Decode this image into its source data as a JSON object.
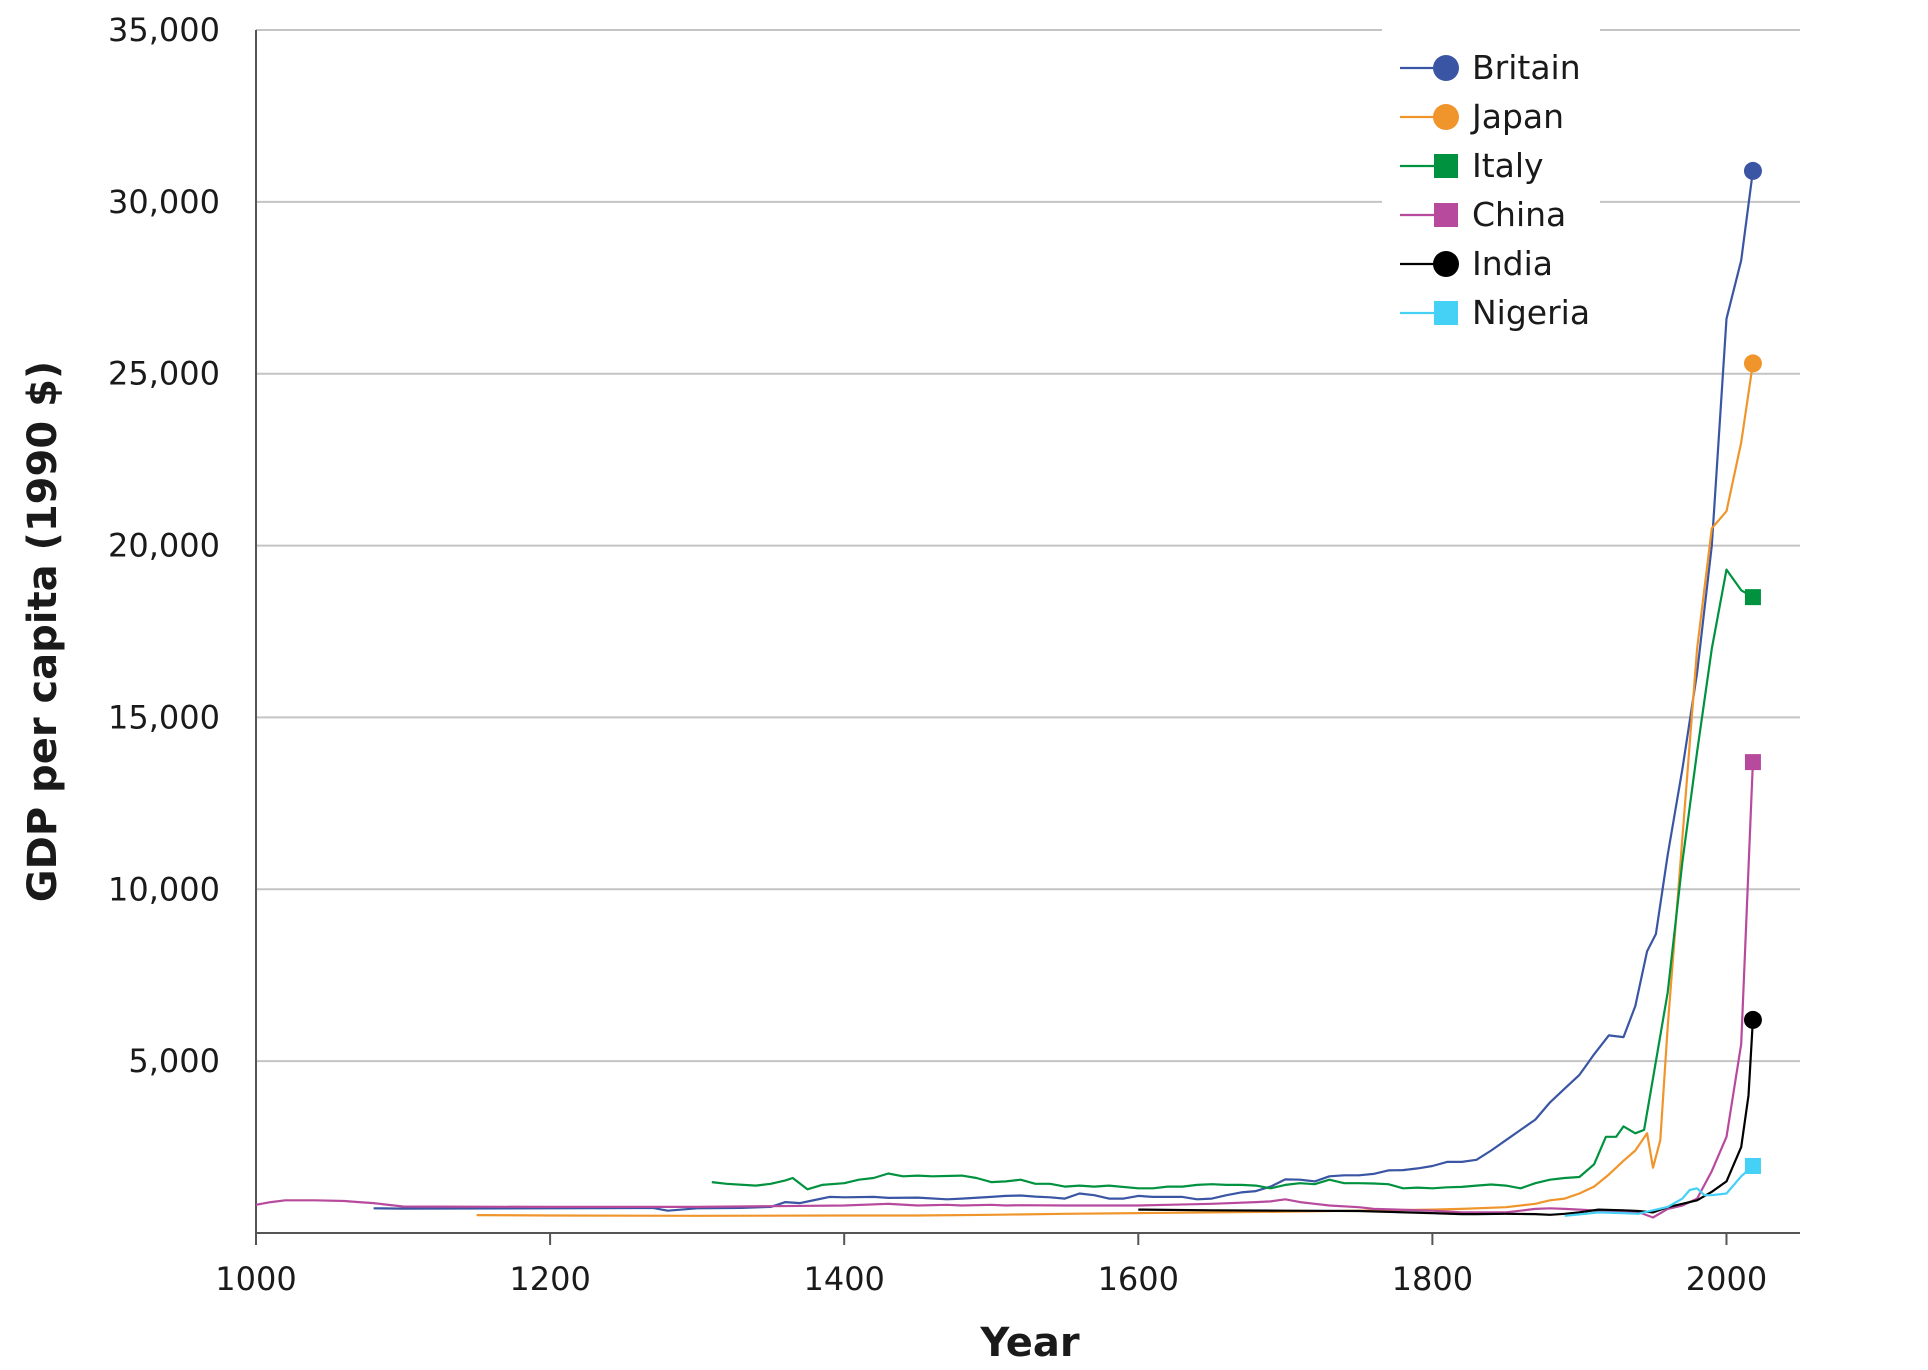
{
  "chart_data": {
    "type": "line",
    "xlabel": "Year",
    "ylabel": "GDP per capita (1990 $)",
    "xlim": [
      1000,
      2050
    ],
    "ylim": [
      0,
      35000
    ],
    "x_ticks": [
      {
        "value": 1000,
        "label": "1000"
      },
      {
        "value": 1200,
        "label": "1200"
      },
      {
        "value": 1400,
        "label": "1400"
      },
      {
        "value": 1600,
        "label": "1600"
      },
      {
        "value": 1800,
        "label": "1800"
      },
      {
        "value": 2000,
        "label": "2000"
      }
    ],
    "y_ticks": [
      {
        "value": 5000,
        "label": "5,000"
      },
      {
        "value": 10000,
        "label": "10,000"
      },
      {
        "value": 15000,
        "label": "15,000"
      },
      {
        "value": 20000,
        "label": "20,000"
      },
      {
        "value": 25000,
        "label": "25,000"
      },
      {
        "value": 30000,
        "label": "30,000"
      },
      {
        "value": 35000,
        "label": "35,000"
      }
    ],
    "grid": "horizontal",
    "legend_position": "top-right",
    "series": [
      {
        "name": "Britain",
        "color": "#3a55a4",
        "marker": "circle",
        "points": [
          [
            1080,
            720
          ],
          [
            1100,
            710
          ],
          [
            1200,
            720
          ],
          [
            1270,
            730
          ],
          [
            1280,
            650
          ],
          [
            1300,
            720
          ],
          [
            1330,
            730
          ],
          [
            1350,
            760
          ],
          [
            1360,
            900
          ],
          [
            1370,
            870
          ],
          [
            1380,
            960
          ],
          [
            1390,
            1050
          ],
          [
            1400,
            1040
          ],
          [
            1420,
            1050
          ],
          [
            1430,
            1020
          ],
          [
            1450,
            1030
          ],
          [
            1470,
            980
          ],
          [
            1480,
            1000
          ],
          [
            1500,
            1050
          ],
          [
            1510,
            1080
          ],
          [
            1520,
            1090
          ],
          [
            1530,
            1060
          ],
          [
            1540,
            1040
          ],
          [
            1550,
            1000
          ],
          [
            1560,
            1150
          ],
          [
            1570,
            1100
          ],
          [
            1580,
            1000
          ],
          [
            1590,
            1000
          ],
          [
            1600,
            1080
          ],
          [
            1610,
            1050
          ],
          [
            1630,
            1050
          ],
          [
            1640,
            980
          ],
          [
            1650,
            1000
          ],
          [
            1660,
            1100
          ],
          [
            1670,
            1180
          ],
          [
            1680,
            1220
          ],
          [
            1690,
            1350
          ],
          [
            1700,
            1560
          ],
          [
            1710,
            1550
          ],
          [
            1720,
            1500
          ],
          [
            1730,
            1650
          ],
          [
            1740,
            1680
          ],
          [
            1750,
            1680
          ],
          [
            1760,
            1720
          ],
          [
            1770,
            1820
          ],
          [
            1780,
            1830
          ],
          [
            1790,
            1880
          ],
          [
            1800,
            1950
          ],
          [
            1810,
            2070
          ],
          [
            1820,
            2070
          ],
          [
            1830,
            2130
          ],
          [
            1840,
            2400
          ],
          [
            1850,
            2700
          ],
          [
            1860,
            3000
          ],
          [
            1870,
            3300
          ],
          [
            1880,
            3800
          ],
          [
            1890,
            4200
          ],
          [
            1900,
            4600
          ],
          [
            1905,
            4900
          ],
          [
            1910,
            5200
          ],
          [
            1920,
            5750
          ],
          [
            1930,
            5700
          ],
          [
            1938,
            6600
          ],
          [
            1946,
            8200
          ],
          [
            1952,
            8700
          ],
          [
            1960,
            11000
          ],
          [
            1970,
            13500
          ],
          [
            1980,
            16300
          ],
          [
            1990,
            20000
          ],
          [
            2000,
            26600
          ],
          [
            2010,
            28300
          ],
          [
            2018,
            30900
          ]
        ]
      },
      {
        "name": "Japan",
        "color": "#f0952c",
        "marker": "circle",
        "points": [
          [
            1150,
            520
          ],
          [
            1200,
            510
          ],
          [
            1300,
            500
          ],
          [
            1400,
            510
          ],
          [
            1450,
            510
          ],
          [
            1500,
            530
          ],
          [
            1550,
            560
          ],
          [
            1600,
            580
          ],
          [
            1650,
            600
          ],
          [
            1700,
            620
          ],
          [
            1750,
            650
          ],
          [
            1800,
            680
          ],
          [
            1820,
            700
          ],
          [
            1850,
            750
          ],
          [
            1870,
            850
          ],
          [
            1880,
            950
          ],
          [
            1890,
            1000
          ],
          [
            1900,
            1150
          ],
          [
            1910,
            1350
          ],
          [
            1920,
            1700
          ],
          [
            1930,
            2100
          ],
          [
            1938,
            2400
          ],
          [
            1946,
            2900
          ],
          [
            1950,
            1900
          ],
          [
            1955,
            2700
          ],
          [
            1960,
            6000
          ],
          [
            1970,
            11500
          ],
          [
            1980,
            17000
          ],
          [
            1990,
            20500
          ],
          [
            2000,
            21000
          ],
          [
            2010,
            23000
          ],
          [
            2018,
            25300
          ]
        ]
      },
      {
        "name": "Italy",
        "color": "#00923f",
        "marker": "square",
        "points": [
          [
            1310,
            1480
          ],
          [
            1320,
            1430
          ],
          [
            1340,
            1380
          ],
          [
            1350,
            1430
          ],
          [
            1360,
            1530
          ],
          [
            1365,
            1600
          ],
          [
            1375,
            1270
          ],
          [
            1385,
            1400
          ],
          [
            1400,
            1450
          ],
          [
            1410,
            1550
          ],
          [
            1420,
            1600
          ],
          [
            1430,
            1730
          ],
          [
            1440,
            1650
          ],
          [
            1450,
            1670
          ],
          [
            1460,
            1650
          ],
          [
            1480,
            1670
          ],
          [
            1490,
            1600
          ],
          [
            1500,
            1480
          ],
          [
            1510,
            1500
          ],
          [
            1520,
            1550
          ],
          [
            1530,
            1430
          ],
          [
            1540,
            1430
          ],
          [
            1550,
            1350
          ],
          [
            1560,
            1380
          ],
          [
            1570,
            1350
          ],
          [
            1580,
            1380
          ],
          [
            1600,
            1300
          ],
          [
            1610,
            1300
          ],
          [
            1620,
            1350
          ],
          [
            1630,
            1350
          ],
          [
            1640,
            1400
          ],
          [
            1650,
            1420
          ],
          [
            1660,
            1400
          ],
          [
            1670,
            1400
          ],
          [
            1680,
            1380
          ],
          [
            1690,
            1300
          ],
          [
            1700,
            1400
          ],
          [
            1710,
            1450
          ],
          [
            1720,
            1420
          ],
          [
            1730,
            1550
          ],
          [
            1740,
            1450
          ],
          [
            1750,
            1450
          ],
          [
            1760,
            1440
          ],
          [
            1770,
            1420
          ],
          [
            1780,
            1300
          ],
          [
            1790,
            1320
          ],
          [
            1800,
            1300
          ],
          [
            1810,
            1330
          ],
          [
            1820,
            1340
          ],
          [
            1830,
            1380
          ],
          [
            1840,
            1410
          ],
          [
            1850,
            1380
          ],
          [
            1860,
            1300
          ],
          [
            1870,
            1450
          ],
          [
            1880,
            1550
          ],
          [
            1890,
            1600
          ],
          [
            1900,
            1630
          ],
          [
            1910,
            2000
          ],
          [
            1918,
            2800
          ],
          [
            1925,
            2800
          ],
          [
            1930,
            3100
          ],
          [
            1938,
            2900
          ],
          [
            1944,
            3000
          ],
          [
            1950,
            4500
          ],
          [
            1960,
            7000
          ],
          [
            1970,
            10800
          ],
          [
            1980,
            14000
          ],
          [
            1990,
            17000
          ],
          [
            2000,
            19300
          ],
          [
            2010,
            18700
          ],
          [
            2018,
            18500
          ]
        ]
      },
      {
        "name": "China",
        "color": "#b84a9e",
        "marker": "square",
        "points": [
          [
            1000,
            820
          ],
          [
            1010,
            900
          ],
          [
            1020,
            950
          ],
          [
            1040,
            950
          ],
          [
            1060,
            930
          ],
          [
            1070,
            900
          ],
          [
            1080,
            870
          ],
          [
            1100,
            770
          ],
          [
            1200,
            760
          ],
          [
            1300,
            760
          ],
          [
            1350,
            780
          ],
          [
            1400,
            800
          ],
          [
            1430,
            850
          ],
          [
            1450,
            800
          ],
          [
            1470,
            820
          ],
          [
            1480,
            800
          ],
          [
            1500,
            820
          ],
          [
            1510,
            800
          ],
          [
            1520,
            810
          ],
          [
            1550,
            800
          ],
          [
            1600,
            800
          ],
          [
            1620,
            820
          ],
          [
            1650,
            850
          ],
          [
            1680,
            900
          ],
          [
            1690,
            920
          ],
          [
            1700,
            980
          ],
          [
            1710,
            900
          ],
          [
            1720,
            850
          ],
          [
            1730,
            800
          ],
          [
            1750,
            750
          ],
          [
            1760,
            700
          ],
          [
            1800,
            650
          ],
          [
            1820,
            600
          ],
          [
            1850,
            600
          ],
          [
            1860,
            650
          ],
          [
            1870,
            700
          ],
          [
            1880,
            720
          ],
          [
            1890,
            700
          ],
          [
            1900,
            680
          ],
          [
            1913,
            650
          ],
          [
            1929,
            620
          ],
          [
            1940,
            610
          ],
          [
            1950,
            450
          ],
          [
            1960,
            700
          ],
          [
            1970,
            800
          ],
          [
            1980,
            1000
          ],
          [
            1990,
            1800
          ],
          [
            2000,
            2800
          ],
          [
            2010,
            5500
          ],
          [
            2018,
            13700
          ]
        ]
      },
      {
        "name": "India",
        "color": "#000000",
        "marker": "circle",
        "points": [
          [
            1600,
            680
          ],
          [
            1650,
            660
          ],
          [
            1700,
            650
          ],
          [
            1750,
            640
          ],
          [
            1800,
            580
          ],
          [
            1820,
            550
          ],
          [
            1830,
            550
          ],
          [
            1850,
            560
          ],
          [
            1870,
            550
          ],
          [
            1880,
            530
          ],
          [
            1890,
            560
          ],
          [
            1900,
            600
          ],
          [
            1913,
            680
          ],
          [
            1930,
            660
          ],
          [
            1940,
            640
          ],
          [
            1950,
            600
          ],
          [
            1960,
            750
          ],
          [
            1970,
            850
          ],
          [
            1980,
            950
          ],
          [
            1990,
            1200
          ],
          [
            2000,
            1500
          ],
          [
            2005,
            2000
          ],
          [
            2010,
            2500
          ],
          [
            2015,
            4000
          ],
          [
            2018,
            6200
          ]
        ]
      },
      {
        "name": "Nigeria",
        "color": "#45d1f5",
        "marker": "square",
        "points": [
          [
            1890,
            500
          ],
          [
            1900,
            540
          ],
          [
            1913,
            600
          ],
          [
            1930,
            580
          ],
          [
            1940,
            560
          ],
          [
            1950,
            660
          ],
          [
            1960,
            760
          ],
          [
            1970,
            1000
          ],
          [
            1975,
            1250
          ],
          [
            1980,
            1300
          ],
          [
            1985,
            1100
          ],
          [
            1990,
            1100
          ],
          [
            2000,
            1150
          ],
          [
            2010,
            1650
          ],
          [
            2018,
            1950
          ]
        ]
      }
    ]
  }
}
